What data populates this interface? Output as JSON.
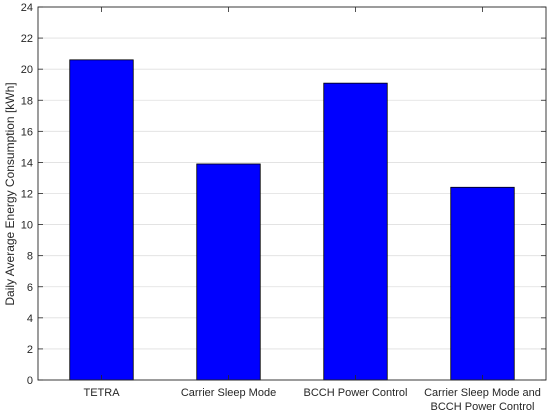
{
  "chart_data": {
    "type": "bar",
    "categories": [
      [
        "TETRA"
      ],
      [
        "Carrier Sleep Mode"
      ],
      [
        "BCCH Power Control"
      ],
      [
        "Carrier Sleep Mode and",
        "BCCH Power Control"
      ]
    ],
    "values": [
      20.6,
      13.9,
      19.1,
      12.4
    ],
    "title": "",
    "xlabel": "",
    "ylabel": "Daily Average Energy Consumption [kWh]",
    "ylim": [
      0,
      24
    ],
    "yticks": [
      0,
      2,
      4,
      6,
      8,
      10,
      12,
      14,
      16,
      18,
      20,
      22,
      24
    ],
    "grid": true,
    "bar_color": "#0000ff",
    "bar_edge_color": "#000000"
  }
}
